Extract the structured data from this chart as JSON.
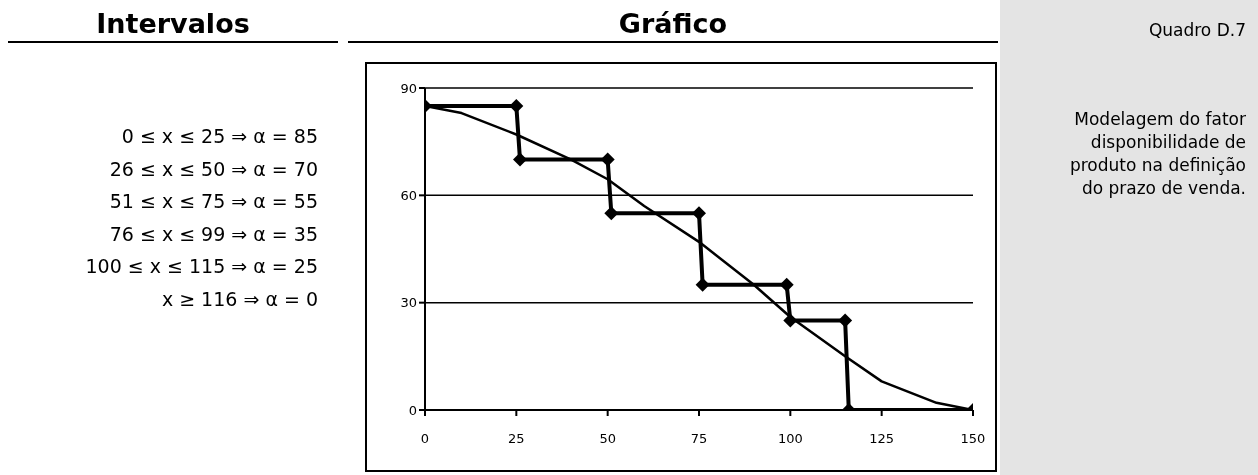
{
  "chart_data": {
    "type": "line",
    "title": "Gráfico",
    "annotations": [
      "Intervalos",
      "0 ≤  x ≤  25 ⇒ α = 85",
      "26 ≤  x ≤  50 ⇒ α = 70",
      "51 ≤  x ≤  75 ⇒ α = 55",
      "76 ≤  x ≤  99 ⇒ α = 35",
      "100 ≤  x ≤ 115 ⇒ α = 25",
      "x ≥ 116 ⇒ α =  0",
      "Quadro D.7",
      "Modelagem do fator disponibilidade de produto na definição do prazo de venda."
    ],
    "series": [
      {
        "color": "#000000",
        "marker": "diamond",
        "x": [
          0,
          25,
          26,
          50,
          51,
          75,
          76,
          99,
          100,
          115,
          116,
          150
        ],
        "values": [
          85,
          85,
          70,
          70,
          55,
          55,
          35,
          35,
          25,
          25,
          0,
          0
        ]
      },
      {
        "color": "#000000",
        "marker": "none",
        "x": [
          0,
          10,
          25,
          40,
          50,
          60,
          75,
          90,
          100,
          115,
          125,
          140,
          150
        ],
        "values": [
          85,
          83,
          77,
          70,
          64.5,
          57,
          47,
          35,
          26,
          15,
          8,
          2,
          0
        ]
      }
    ],
    "xlim": [
      0,
      150
    ],
    "xticks": [
      0,
      25,
      50,
      75,
      100,
      125,
      150
    ],
    "ylim": [
      0,
      90
    ],
    "yticks": [
      0,
      30,
      60,
      90
    ],
    "grid": "y",
    "line_style": "solid"
  }
}
